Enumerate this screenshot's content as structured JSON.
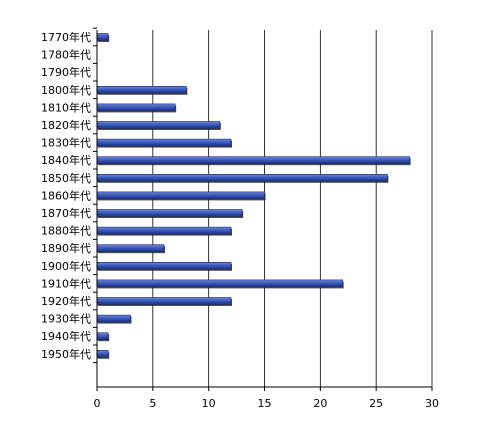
{
  "chart_data": {
    "type": "bar",
    "orientation": "horizontal",
    "categories": [
      "1770年代",
      "1780年代",
      "1790年代",
      "1800年代",
      "1810年代",
      "1820年代",
      "1830年代",
      "1840年代",
      "1850年代",
      "1860年代",
      "1870年代",
      "1880年代",
      "1890年代",
      "1900年代",
      "1910年代",
      "1920年代",
      "1930年代",
      "1940年代",
      "1950年代"
    ],
    "values": [
      1,
      0,
      0,
      8,
      7,
      11,
      12,
      28,
      26,
      15,
      13,
      12,
      6,
      12,
      22,
      12,
      3,
      1,
      1
    ],
    "xlim": [
      0,
      30
    ],
    "xticks": [
      0,
      5,
      10,
      15,
      20,
      25,
      30
    ],
    "grid": "vertical",
    "legend": "none",
    "colors": {
      "bar_fill": "#3a56b8",
      "bar_highlight": "#6a86e0",
      "bar_stroke": "#1c2a5e",
      "bar_shadow": "#222222",
      "gridline": "#000000",
      "axis": "#000000"
    }
  }
}
